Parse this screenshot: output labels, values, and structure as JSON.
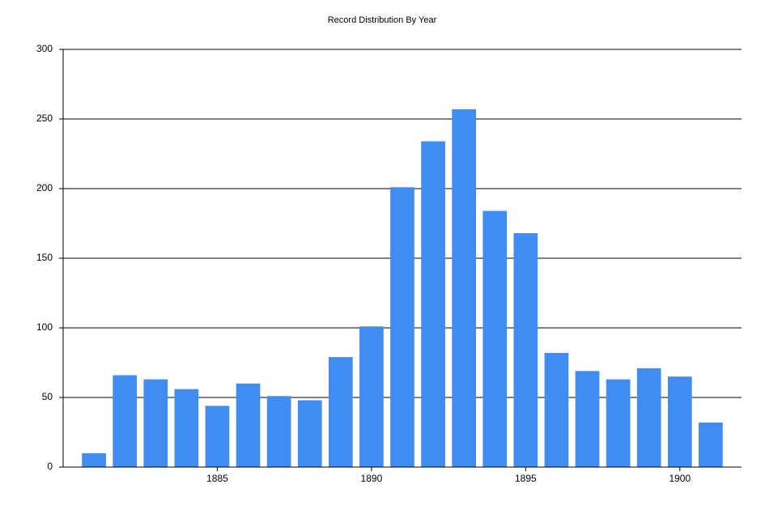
{
  "chart_data": {
    "type": "bar",
    "title": "Record Distribution By Year",
    "x": [
      1881,
      1882,
      1883,
      1884,
      1885,
      1886,
      1887,
      1888,
      1889,
      1890,
      1891,
      1892,
      1893,
      1894,
      1895,
      1896,
      1897,
      1898,
      1899,
      1900,
      1901
    ],
    "values": [
      10,
      66,
      63,
      56,
      44,
      60,
      51,
      48,
      79,
      101,
      201,
      234,
      257,
      184,
      168,
      82,
      69,
      63,
      71,
      65,
      32
    ],
    "color": "#418cf0",
    "xlim": [
      1880,
      1902
    ],
    "xticks": [
      1885,
      1890,
      1895,
      1900
    ],
    "ylim": [
      0,
      300
    ],
    "yticks": [
      0,
      50,
      100,
      150,
      200,
      250,
      300
    ],
    "grid": true
  }
}
